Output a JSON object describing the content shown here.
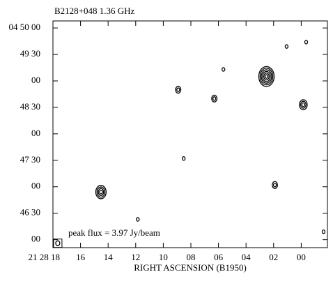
{
  "chart_data": {
    "type": "contour",
    "title": "B2128+048  1.36 GHz",
    "x_label": "RIGHT ASCENSION (B1950)",
    "annotation": "peak flux =  3.97 Jy/beam",
    "xlim": [
      18,
      -1.9
    ],
    "ylim": [
      17151,
      17408
    ],
    "xticks": [
      {
        "value": 18,
        "label": "21 28 18"
      },
      16,
      14,
      12,
      10,
      {
        "value": 8,
        "label": "08"
      },
      {
        "value": 6,
        "label": "06"
      },
      {
        "value": 4,
        "label": "04"
      },
      {
        "value": 2,
        "label": "02"
      },
      {
        "value": 0,
        "label": "00"
      }
    ],
    "yticks": [
      {
        "value": 17400,
        "label": "04 50 00"
      },
      {
        "value": 17370,
        "label": "49 30"
      },
      {
        "value": 17340,
        "label": "00"
      },
      {
        "value": 17310,
        "label": "48 30"
      },
      {
        "value": 17280,
        "label": "00"
      },
      {
        "value": 17250,
        "label": "47 30"
      },
      {
        "value": 17220,
        "label": "00"
      },
      {
        "value": 17190,
        "label": "46 30"
      },
      {
        "value": 17160,
        "label": "00"
      }
    ],
    "sources": {
      "x": [
        2.52,
        14.52,
        8.92,
        6.3,
        5.64,
        1.06,
        -0.36,
        -0.15,
        1.91,
        8.52,
        11.85,
        -1.62
      ],
      "values": [
        17345,
        17214,
        17330,
        17320,
        17353,
        17379,
        17384,
        17313,
        17222,
        17252,
        17183,
        17169
      ],
      "sizes": [
        6,
        4,
        2,
        2,
        1,
        1,
        1,
        3,
        2,
        1,
        1,
        1
      ]
    },
    "beam": {
      "x": 17.65,
      "y": 17156
    },
    "color": "#000000"
  }
}
